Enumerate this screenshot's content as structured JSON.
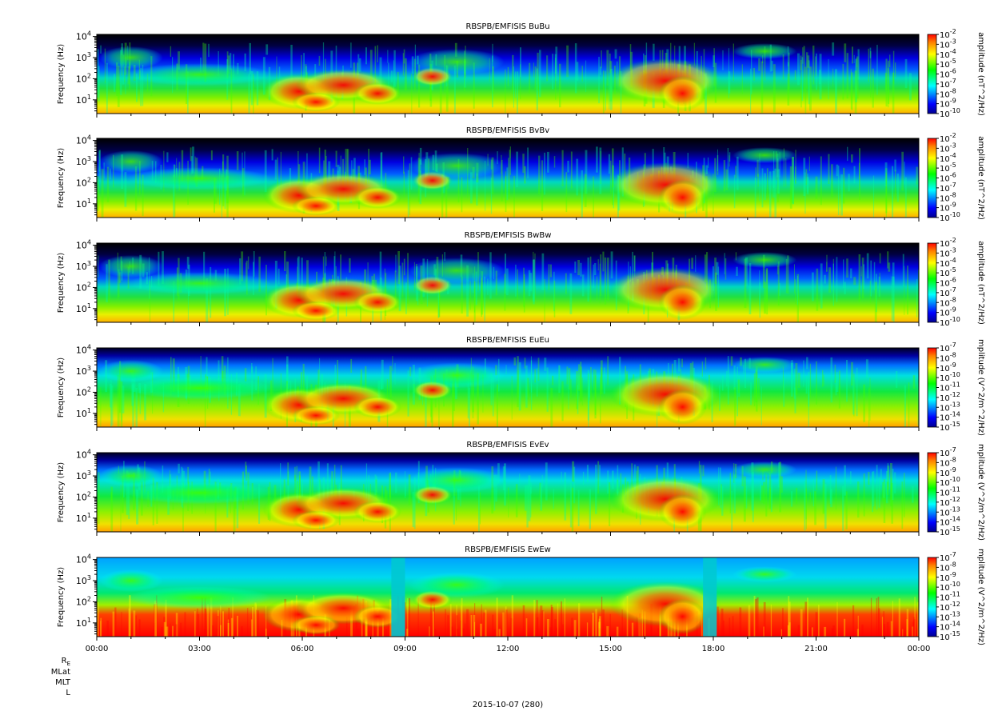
{
  "figure": {
    "footer_date": "2015-10-07 (280)",
    "ephemeris_labels": [
      "R",
      "MLat",
      "MLT",
      "L"
    ],
    "ephemeris_subscript": "E"
  },
  "chart_data": {
    "type": "heatmap",
    "x_tick_labels": [
      "00:00",
      "03:00",
      "06:00",
      "09:00",
      "12:00",
      "15:00",
      "18:00",
      "21:00",
      "00:00"
    ],
    "x_range_hours": [
      0,
      24
    ],
    "y_range_log10_hz": [
      0.35,
      4.1
    ],
    "y_ticks": [
      {
        "exp": 1,
        "label": "10",
        "sup": "1"
      },
      {
        "exp": 2,
        "label": "10",
        "sup": "2"
      },
      {
        "exp": 3,
        "label": "10",
        "sup": "3"
      },
      {
        "exp": 4,
        "label": "10",
        "sup": "4"
      }
    ],
    "ylabel": "Frequency (Hz)",
    "panels": [
      {
        "title": "RBSPB/EMFISIS  BuBu",
        "colorbar_label": "amplitude (nT^2/Hz)",
        "zlim_exp": [
          -10,
          -2
        ],
        "bg": "B"
      },
      {
        "title": "RBSPB/EMFISIS  BvBv",
        "colorbar_label": "amplitude (nT^2/Hz)",
        "zlim_exp": [
          -10,
          -2
        ],
        "bg": "B"
      },
      {
        "title": "RBSPB/EMFISIS  BwBw",
        "colorbar_label": "amplitude (nT^2/Hz)",
        "zlim_exp": [
          -10,
          -2
        ],
        "bg": "B"
      },
      {
        "title": "RBSPB/EMFISIS  EuEu",
        "colorbar_label": "mplitude (V^2/m^2/Hz)",
        "zlim_exp": [
          -15,
          -7
        ],
        "bg": "E"
      },
      {
        "title": "RBSPB/EMFISIS  EvEv",
        "colorbar_label": "mplitude (V^2/m^2/Hz)",
        "zlim_exp": [
          -15,
          -7
        ],
        "bg": "E"
      },
      {
        "title": "RBSPB/EMFISIS  EwEw",
        "colorbar_label": "mplitude (V^2/m^2/Hz)",
        "zlim_exp": [
          -15,
          -7
        ],
        "bg": "W"
      }
    ]
  }
}
